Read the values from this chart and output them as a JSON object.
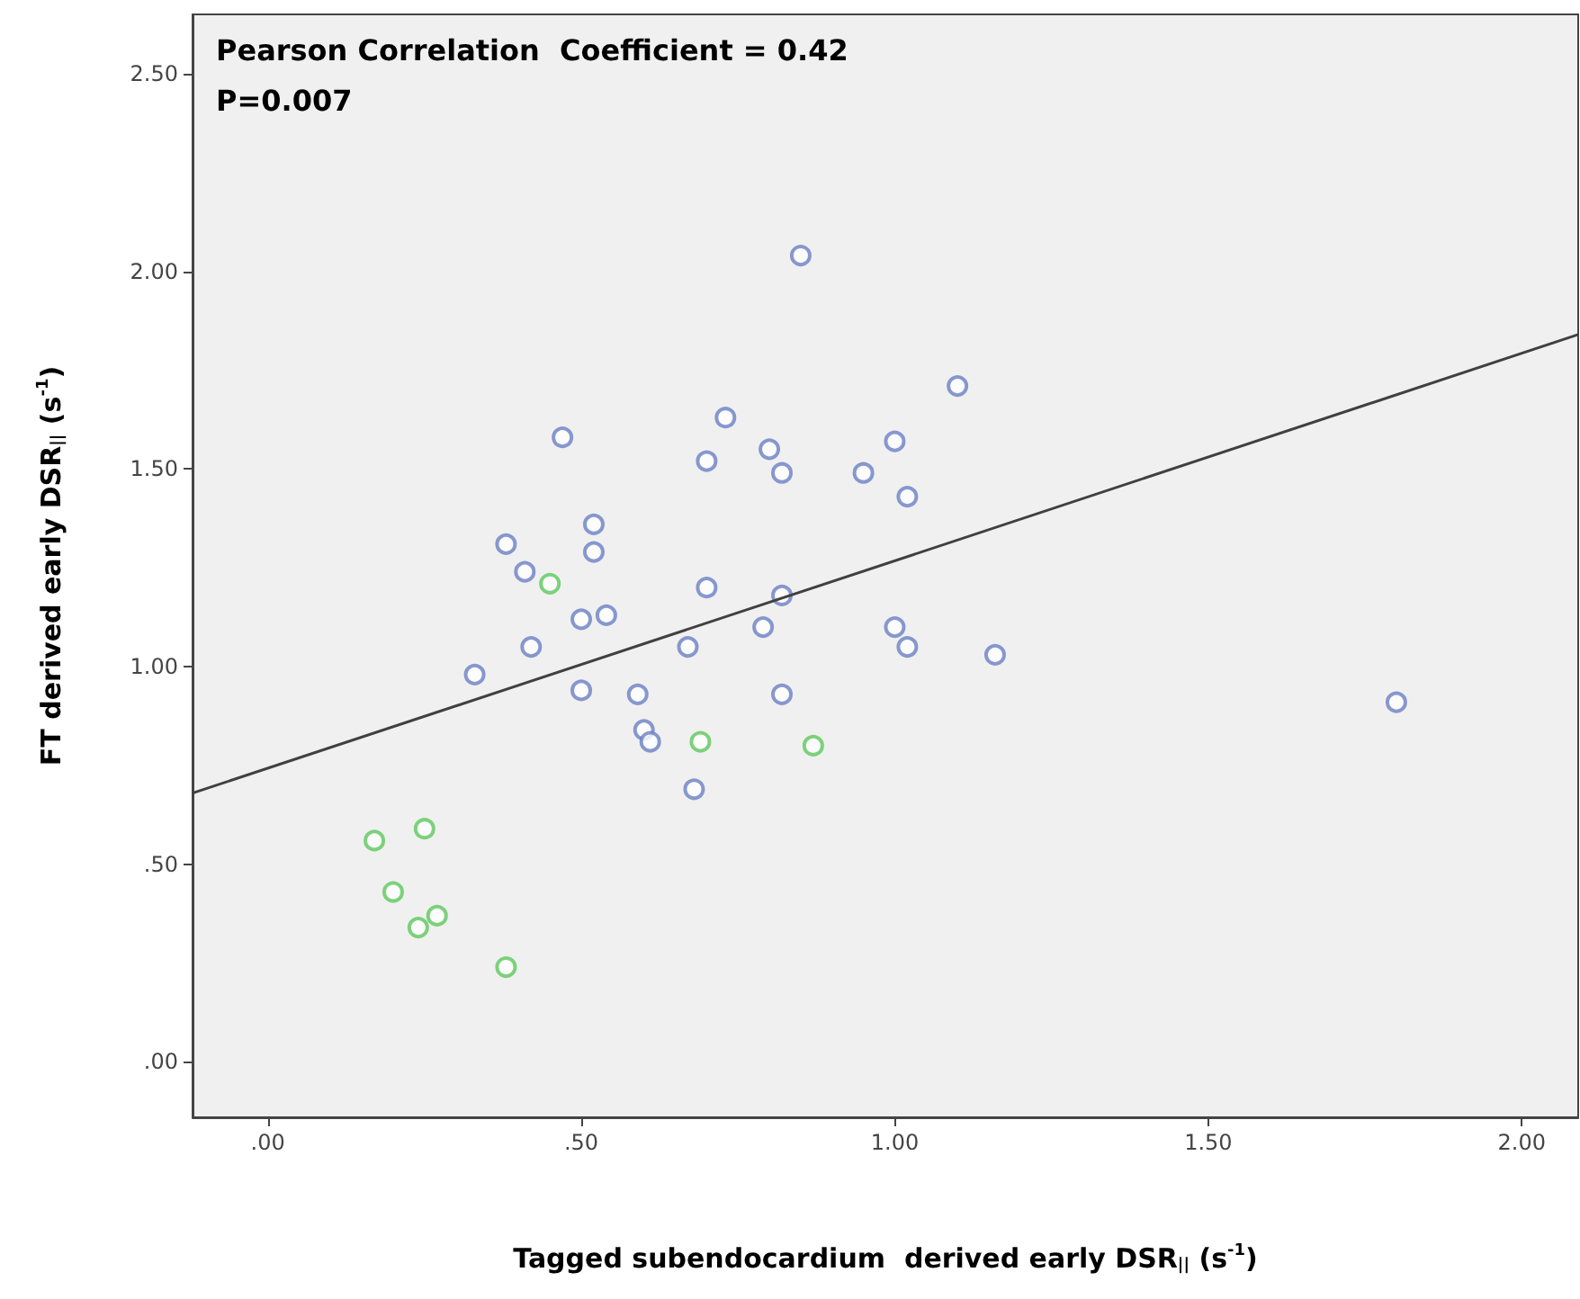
{
  "chart_data": {
    "type": "scatter",
    "xlabel": "Tagged subendocardium  derived early DSR$_{||}$ (s$^{-1}$)",
    "ylabel": "FT derived early DSR$_{||}$ (s$^{-1}$)",
    "annotations": [
      "Pearson Correlation  Coefficient = 0.42",
      "P=0.007"
    ],
    "xlim": [
      -0.12,
      2.09
    ],
    "ylim": [
      -0.14,
      2.65
    ],
    "xticks": [
      {
        "value": 0,
        "label": ".00"
      },
      {
        "value": 0.5,
        "label": ".50"
      },
      {
        "value": 1,
        "label": "1.00"
      },
      {
        "value": 1.5,
        "label": "1.50"
      },
      {
        "value": 2,
        "label": "2.00"
      }
    ],
    "yticks": [
      {
        "value": 0,
        "label": ".00"
      },
      {
        "value": 0.5,
        "label": ".50"
      },
      {
        "value": 1,
        "label": "1.00"
      },
      {
        "value": 1.5,
        "label": "1.50"
      },
      {
        "value": 2,
        "label": "2.00"
      },
      {
        "value": 2.5,
        "label": "2.50"
      }
    ],
    "marker": "circle",
    "grid": false,
    "series": [
      {
        "color": "#6a7fc4",
        "x": [
          0.85,
          1.1,
          0.73,
          0.47,
          0.7,
          0.8,
          0.82,
          1.0,
          0.95,
          1.02,
          0.52,
          0.38,
          0.52,
          0.41,
          0.7,
          0.82,
          0.5,
          0.54,
          0.79,
          0.42,
          0.67,
          1.0,
          1.02,
          1.16,
          0.33,
          0.5,
          0.59,
          0.82,
          0.6,
          0.61,
          0.68,
          1.8
        ],
        "values": [
          2.04,
          1.71,
          1.63,
          1.58,
          1.52,
          1.55,
          1.49,
          1.57,
          1.49,
          1.43,
          1.36,
          1.31,
          1.29,
          1.24,
          1.2,
          1.18,
          1.12,
          1.13,
          1.1,
          1.05,
          1.05,
          1.1,
          1.05,
          1.03,
          0.98,
          0.94,
          0.93,
          0.93,
          0.84,
          0.81,
          0.69,
          0.91
        ]
      },
      {
        "color": "#5cc85c",
        "x": [
          0.45,
          0.69,
          0.87,
          0.17,
          0.25,
          0.2,
          0.27,
          0.24,
          0.38
        ],
        "values": [
          1.21,
          0.81,
          0.8,
          0.56,
          0.59,
          0.43,
          0.37,
          0.34,
          0.24
        ]
      },
      {
        "type": "line",
        "color": "#404040",
        "marker": "none",
        "x": [
          -0.12,
          2.09
        ],
        "values": [
          0.68,
          1.84
        ]
      }
    ]
  }
}
